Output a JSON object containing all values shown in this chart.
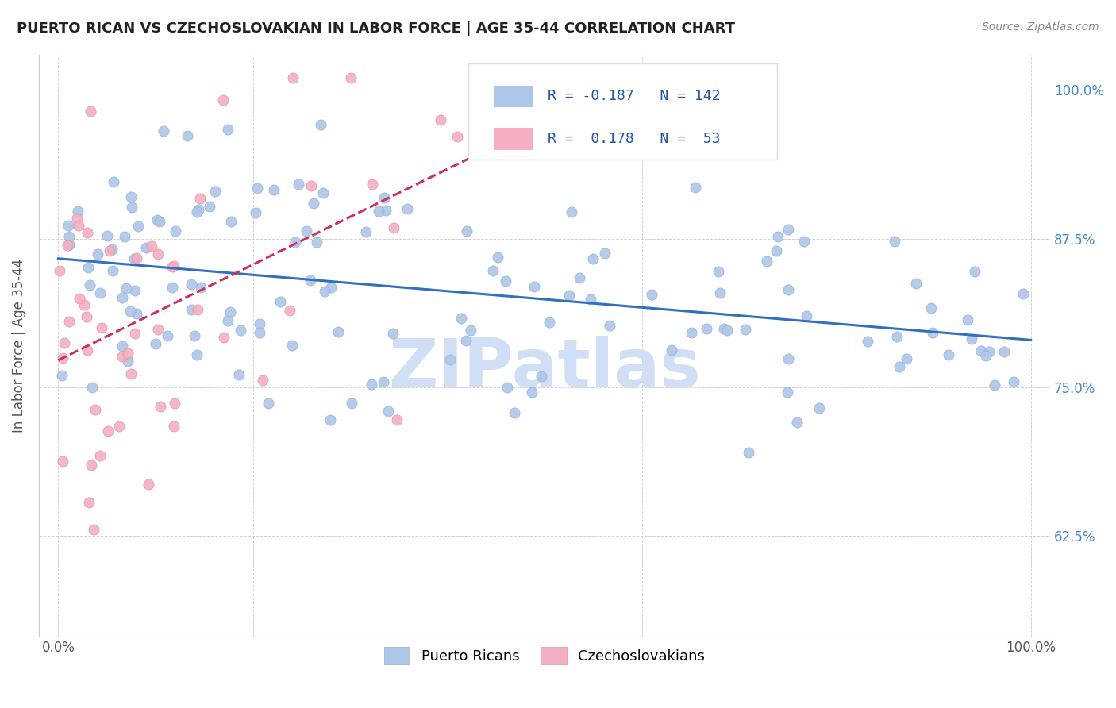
{
  "title": "PUERTO RICAN VS CZECHOSLOVAKIAN IN LABOR FORCE | AGE 35-44 CORRELATION CHART",
  "source": "Source: ZipAtlas.com",
  "ylabel": "In Labor Force | Age 35-44",
  "xlim": [
    0.0,
    1.0
  ],
  "ylim": [
    0.54,
    1.03
  ],
  "legend_r_blue": "-0.187",
  "legend_n_blue": "142",
  "legend_r_pink": "0.178",
  "legend_n_pink": "53",
  "blue_color": "#aec6e8",
  "blue_edge": "#8ab0d8",
  "pink_color": "#f4afc0",
  "pink_edge": "#e090a8",
  "trend_blue": "#3070c0",
  "trend_pink": "#d03060",
  "watermark": "ZIPatlas",
  "watermark_color": "#d0dff5",
  "grid_color": "#cccccc",
  "right_tick_color": "#4488cc",
  "title_color": "#222222",
  "source_color": "#888888",
  "ylabel_color": "#555555",
  "xtick_color": "#555555",
  "blue_trend_start_y": 0.87,
  "blue_trend_end_y": 0.784,
  "pink_trend_start_y": 0.805,
  "pink_trend_end_y": 0.96,
  "pink_trend_end_x": 0.5,
  "ytick_positions": [
    0.625,
    0.75,
    0.875,
    1.0
  ],
  "ytick_labels": [
    "62.5%",
    "75.0%",
    "87.5%",
    "100.0%"
  ],
  "xtick_positions": [
    0.0,
    0.2,
    0.4,
    0.6,
    0.8,
    1.0
  ],
  "xtick_labels": [
    "0.0%",
    "",
    "",
    "",
    "",
    "100.0%"
  ]
}
